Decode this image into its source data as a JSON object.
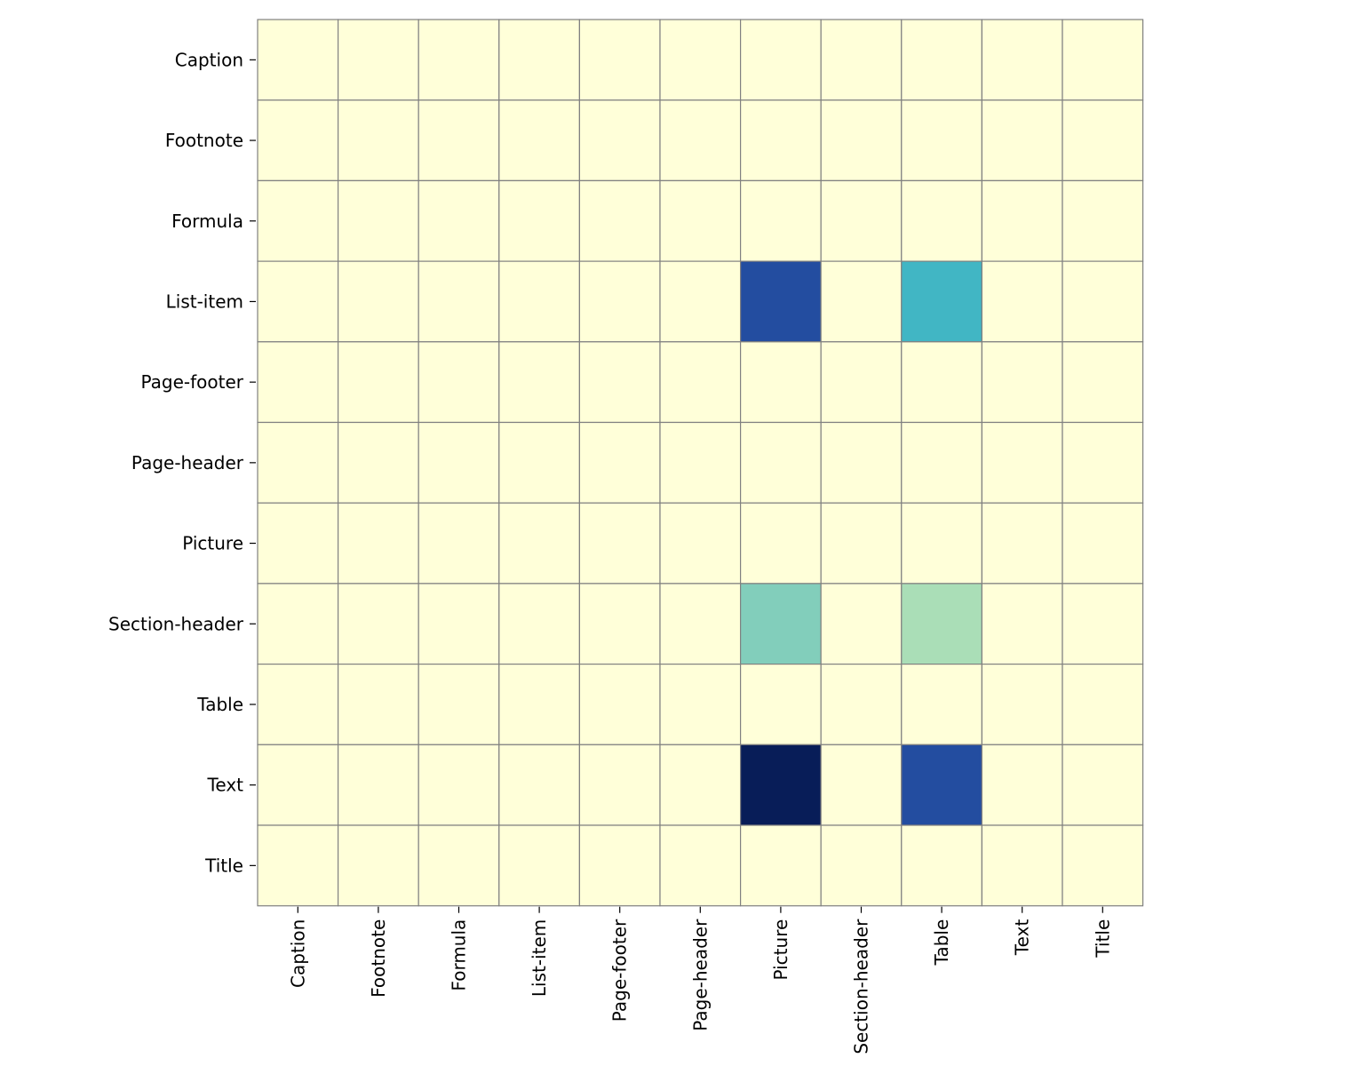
{
  "chart_data": {
    "type": "heatmap",
    "title": "",
    "xlabel": "",
    "ylabel": "",
    "rows": [
      "Caption",
      "Footnote",
      "Formula",
      "List-item",
      "Page-footer",
      "Page-header",
      "Picture",
      "Section-header",
      "Table",
      "Text",
      "Title"
    ],
    "columns": [
      "Caption",
      "Footnote",
      "Formula",
      "List-item",
      "Page-footer",
      "Page-header",
      "Picture",
      "Section-header",
      "Table",
      "Text",
      "Title"
    ],
    "values": [
      [
        0,
        0,
        0,
        0,
        0,
        0,
        0,
        0,
        0,
        0,
        0
      ],
      [
        0,
        0,
        0,
        0,
        0,
        0,
        0,
        0,
        0,
        0,
        0
      ],
      [
        0,
        0,
        0,
        0,
        0,
        0,
        0,
        0,
        0,
        0,
        0
      ],
      [
        0,
        0,
        0,
        0,
        0,
        0,
        0.8,
        0,
        0.5,
        0,
        0
      ],
      [
        0,
        0,
        0,
        0,
        0,
        0,
        0,
        0,
        0,
        0,
        0
      ],
      [
        0,
        0,
        0,
        0,
        0,
        0,
        0,
        0,
        0,
        0,
        0
      ],
      [
        0,
        0,
        0,
        0,
        0,
        0,
        0,
        0,
        0,
        0,
        0
      ],
      [
        0,
        0,
        0,
        0,
        0,
        0,
        0.37,
        0,
        0.3,
        0,
        0
      ],
      [
        0,
        0,
        0,
        0,
        0,
        0,
        0,
        0,
        0,
        0,
        0
      ],
      [
        0,
        0,
        0,
        0,
        0,
        0,
        1.0,
        0,
        0.8,
        0,
        0
      ],
      [
        0,
        0,
        0,
        0,
        0,
        0,
        0,
        0,
        0,
        0,
        0
      ]
    ],
    "colormap": "YlGnBu",
    "value_range": [
      0,
      1
    ],
    "grid_line_color": "#808080",
    "colorbar": false,
    "legend": false
  }
}
